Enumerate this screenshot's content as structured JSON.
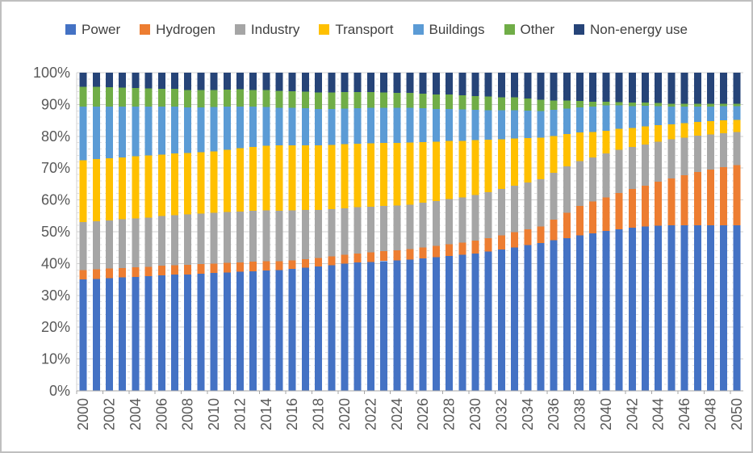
{
  "chart_data": {
    "type": "bar",
    "stacked": true,
    "stacking": "percent",
    "title": "",
    "xlabel": "",
    "ylabel": "",
    "ylim": [
      0,
      100
    ],
    "legend_position": "top",
    "grid": {
      "major_interval_pct": 10,
      "minor_interval_pct": 2,
      "minor_style": "dashed"
    },
    "x_tick_label_interval": 2,
    "yticks": [
      "0%",
      "10%",
      "20%",
      "30%",
      "40%",
      "50%",
      "60%",
      "70%",
      "80%",
      "90%",
      "100%"
    ],
    "years": [
      2000,
      2001,
      2002,
      2003,
      2004,
      2005,
      2006,
      2007,
      2008,
      2009,
      2010,
      2011,
      2012,
      2013,
      2014,
      2015,
      2016,
      2017,
      2018,
      2019,
      2020,
      2021,
      2022,
      2023,
      2024,
      2025,
      2026,
      2027,
      2028,
      2029,
      2030,
      2031,
      2032,
      2033,
      2034,
      2035,
      2036,
      2037,
      2038,
      2039,
      2040,
      2041,
      2042,
      2043,
      2044,
      2045,
      2046,
      2047,
      2048,
      2049,
      2050
    ],
    "series": [
      {
        "name": "Power",
        "color": "#4472C4",
        "values": [
          35.0,
          35.2,
          35.4,
          35.6,
          35.8,
          36.0,
          36.3,
          36.5,
          36.6,
          36.8,
          37.0,
          37.2,
          37.4,
          37.6,
          37.8,
          38.0,
          38.3,
          38.7,
          39.1,
          39.5,
          40.0,
          40.3,
          40.5,
          40.8,
          41.0,
          41.3,
          41.6,
          42.0,
          42.4,
          42.8,
          43.2,
          43.8,
          44.4,
          45.1,
          45.8,
          46.5,
          47.3,
          48.0,
          48.8,
          49.5,
          50.2,
          50.8,
          51.3,
          51.7,
          51.9,
          52.0,
          52.0,
          52.0,
          52.0,
          52.0,
          52.0
        ]
      },
      {
        "name": "Hydrogen",
        "color": "#ED7D31",
        "values": [
          3.0,
          3.0,
          3.0,
          3.0,
          3.0,
          3.0,
          3.0,
          3.0,
          3.0,
          3.0,
          3.0,
          3.0,
          3.0,
          3.0,
          2.9,
          2.7,
          2.7,
          2.7,
          2.7,
          2.8,
          2.8,
          2.9,
          3.0,
          3.1,
          3.2,
          3.2,
          3.4,
          3.5,
          3.7,
          3.8,
          4.0,
          4.2,
          4.5,
          4.8,
          5.0,
          5.2,
          6.5,
          8.0,
          9.3,
          10.0,
          10.6,
          11.4,
          12.1,
          12.8,
          13.8,
          14.8,
          15.8,
          16.8,
          17.6,
          18.3,
          19.0
        ]
      },
      {
        "name": "Industry",
        "color": "#A5A5A5",
        "values": [
          15.0,
          15.1,
          15.2,
          15.3,
          15.4,
          15.5,
          15.6,
          15.7,
          15.8,
          15.9,
          16.0,
          16.0,
          16.0,
          16.0,
          16.0,
          15.9,
          15.7,
          15.4,
          15.1,
          14.8,
          14.6,
          14.5,
          14.4,
          14.2,
          14.1,
          14.0,
          14.1,
          14.1,
          14.2,
          14.2,
          14.3,
          14.4,
          14.5,
          14.6,
          14.7,
          14.8,
          14.7,
          14.5,
          14.1,
          13.9,
          13.8,
          13.5,
          13.2,
          12.9,
          12.6,
          12.2,
          11.8,
          11.4,
          11.0,
          10.7,
          10.3
        ]
      },
      {
        "name": "Transport",
        "color": "#FFC000",
        "values": [
          19.5,
          19.5,
          19.5,
          19.5,
          19.5,
          19.5,
          19.4,
          19.4,
          19.3,
          19.3,
          19.3,
          19.6,
          19.9,
          20.1,
          20.3,
          20.6,
          20.5,
          20.4,
          20.3,
          20.2,
          20.1,
          20.0,
          19.9,
          19.8,
          19.6,
          19.5,
          19.1,
          18.7,
          18.2,
          17.8,
          17.3,
          16.5,
          15.7,
          14.8,
          14.0,
          13.1,
          11.6,
          10.2,
          9.0,
          8.0,
          7.1,
          6.6,
          6.0,
          5.7,
          5.2,
          4.8,
          4.6,
          4.3,
          4.2,
          4.0,
          3.8
        ]
      },
      {
        "name": "Buildings",
        "color": "#5B9BD5",
        "values": [
          16.8,
          16.5,
          16.2,
          15.9,
          15.6,
          15.3,
          15.0,
          14.7,
          14.4,
          14.1,
          13.9,
          13.5,
          13.1,
          12.6,
          12.2,
          11.8,
          11.7,
          11.6,
          11.4,
          11.3,
          11.2,
          11.1,
          11.1,
          11.0,
          11.0,
          10.9,
          10.6,
          10.3,
          10.1,
          9.8,
          9.5,
          9.3,
          9.1,
          8.9,
          8.6,
          8.4,
          8.2,
          8.0,
          7.9,
          8.0,
          8.0,
          7.4,
          6.9,
          6.5,
          6.0,
          5.5,
          5.1,
          4.9,
          4.6,
          4.5,
          4.4
        ]
      },
      {
        "name": "Other",
        "color": "#70AD47",
        "values": [
          6.3,
          6.2,
          6.1,
          6.0,
          5.9,
          5.7,
          5.6,
          5.6,
          5.5,
          5.5,
          5.4,
          5.4,
          5.4,
          5.3,
          5.3,
          5.3,
          5.3,
          5.2,
          5.2,
          5.2,
          5.2,
          5.1,
          5.0,
          4.9,
          4.8,
          4.7,
          4.6,
          4.6,
          4.5,
          4.5,
          4.4,
          4.3,
          4.1,
          4.0,
          3.8,
          3.5,
          3.0,
          2.5,
          2.0,
          1.5,
          1.2,
          1.1,
          1.1,
          1.0,
          1.0,
          0.9,
          0.9,
          0.8,
          0.8,
          0.7,
          0.7
        ]
      },
      {
        "name": "Non-energy use",
        "color": "#264478",
        "values": [
          4.4,
          4.5,
          4.6,
          4.7,
          4.8,
          5.0,
          5.1,
          5.1,
          5.4,
          5.4,
          5.4,
          5.3,
          5.2,
          5.4,
          5.5,
          5.7,
          5.8,
          6.0,
          6.2,
          6.2,
          6.1,
          6.1,
          6.1,
          6.2,
          6.3,
          6.4,
          6.6,
          6.8,
          6.9,
          7.1,
          7.3,
          7.5,
          7.7,
          7.8,
          8.1,
          8.5,
          8.7,
          8.8,
          8.9,
          9.1,
          9.1,
          9.2,
          9.4,
          9.4,
          9.5,
          9.8,
          9.8,
          9.8,
          9.8,
          9.8,
          9.8
        ]
      }
    ]
  },
  "colors": {
    "frame_border": "#BFBFBF",
    "background": "#FFFFFF",
    "legend_text": "#404040",
    "axis_text": "#595959",
    "axis_line": "#A6A6A6",
    "major_gridline": "#D2D2D2",
    "minor_gridline": "#E0E0E0"
  }
}
